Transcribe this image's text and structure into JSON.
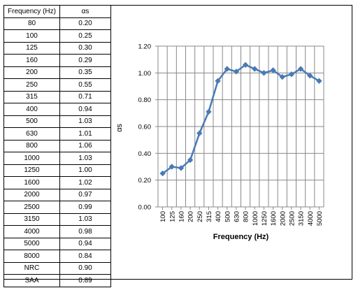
{
  "table": {
    "headers": [
      "Frequency (Hz)",
      "αs"
    ],
    "rows": [
      [
        "80",
        "0.20"
      ],
      [
        "100",
        "0.25"
      ],
      [
        "125",
        "0.30"
      ],
      [
        "160",
        "0.29"
      ],
      [
        "200",
        "0.35"
      ],
      [
        "250",
        "0.55"
      ],
      [
        "315",
        "0.71"
      ],
      [
        "400",
        "0.94"
      ],
      [
        "500",
        "1.03"
      ],
      [
        "630",
        "1.01"
      ],
      [
        "800",
        "1.06"
      ],
      [
        "1000",
        "1.03"
      ],
      [
        "1250",
        "1.00"
      ],
      [
        "1600",
        "1.02"
      ],
      [
        "2000",
        "0.97"
      ],
      [
        "2500",
        "0.99"
      ],
      [
        "3150",
        "1.03"
      ],
      [
        "4000",
        "0.98"
      ],
      [
        "5000",
        "0.94"
      ],
      [
        "8000",
        "0.84"
      ],
      [
        "NRC",
        "0.90"
      ],
      [
        "SAA",
        "0.89"
      ]
    ]
  },
  "chart_data": {
    "type": "line",
    "categories": [
      "100",
      "125",
      "160",
      "200",
      "250",
      "315",
      "400",
      "500",
      "630",
      "800",
      "1000",
      "1250",
      "1600",
      "2000",
      "2500",
      "3150",
      "4000",
      "5000"
    ],
    "series": [
      {
        "values": [
          0.25,
          0.3,
          0.29,
          0.35,
          0.55,
          0.71,
          0.94,
          1.03,
          1.01,
          1.06,
          1.03,
          1.0,
          1.02,
          0.97,
          0.99,
          1.03,
          0.98,
          0.94
        ]
      }
    ],
    "xlabel": "Frequency (Hz)",
    "ylabel": "αs",
    "ylim": [
      0,
      1.2
    ],
    "yticks": [
      "0.00",
      "0.20",
      "0.40",
      "0.60",
      "0.80",
      "1.00",
      "1.20"
    ],
    "grid": true,
    "line_color": "#4a7ab5",
    "marker": "diamond"
  }
}
